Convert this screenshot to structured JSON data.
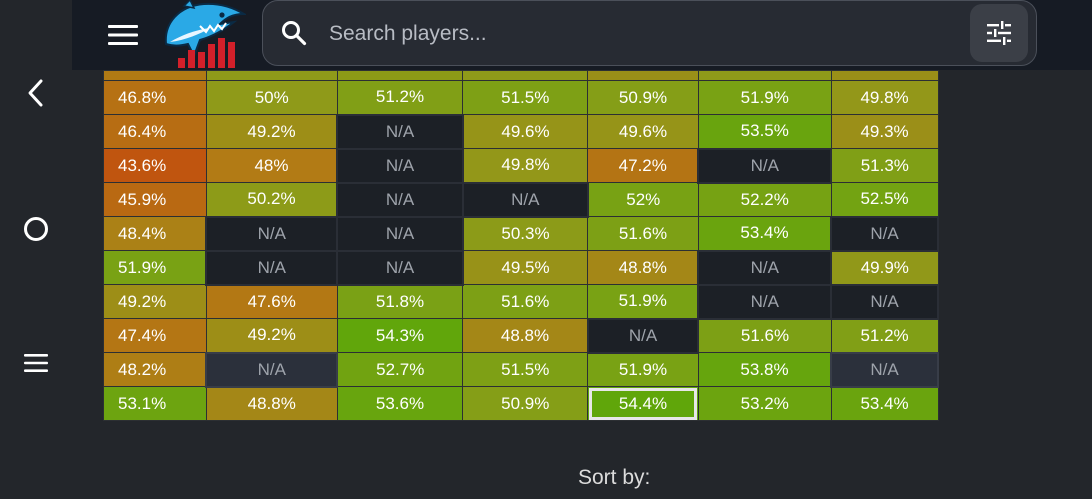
{
  "search": {
    "placeholder": "Search players..."
  },
  "sort": {
    "label": "Sort by:"
  },
  "colors": {
    "background": "#23262b",
    "topbar": "#161b24",
    "na_cell": "#1c2026",
    "cell_low": "#c0540f",
    "cell_mid": "#8f9a19",
    "cell_high": "#5fa60a"
  },
  "icons": {
    "nav_top": "chevron-left-icon",
    "nav_mid": "circle-icon",
    "nav_bottom": "menu-lines-icon",
    "menu": "hamburger-icon",
    "search": "search-icon",
    "filter": "sliders-icon",
    "logo": "shark-logo"
  },
  "table": {
    "rows": [
      [
        "46.8%",
        "50%",
        "51.2%",
        "51.5%",
        "50.9%",
        "51.9%",
        "49.8%"
      ],
      [
        "46.4%",
        "49.2%",
        "N/A",
        "49.6%",
        "49.6%",
        "53.5%",
        "49.3%"
      ],
      [
        "43.6%",
        "48%",
        "N/A",
        "49.8%",
        "47.2%",
        "N/A",
        "51.3%"
      ],
      [
        "45.9%",
        "50.2%",
        "N/A",
        "N/A",
        "52%",
        "52.2%",
        "52.5%"
      ],
      [
        "48.4%",
        "N/A",
        "N/A",
        "50.3%",
        "51.6%",
        "53.4%",
        "N/A"
      ],
      [
        "51.9%",
        "N/A",
        "N/A",
        "49.5%",
        "48.8%",
        "N/A",
        "49.9%"
      ],
      [
        "49.2%",
        "47.6%",
        "51.8%",
        "51.6%",
        "51.9%",
        "N/A",
        "N/A"
      ],
      [
        "47.4%",
        "49.2%",
        "54.3%",
        "48.8%",
        "N/A",
        "51.6%",
        "51.2%"
      ],
      [
        "48.2%",
        "N/A",
        "52.7%",
        "51.5%",
        "51.9%",
        "53.8%",
        "N/A"
      ],
      [
        "53.1%",
        "48.8%",
        "53.6%",
        "50.9%",
        "54.4%",
        "53.2%",
        "53.4%"
      ]
    ]
  }
}
